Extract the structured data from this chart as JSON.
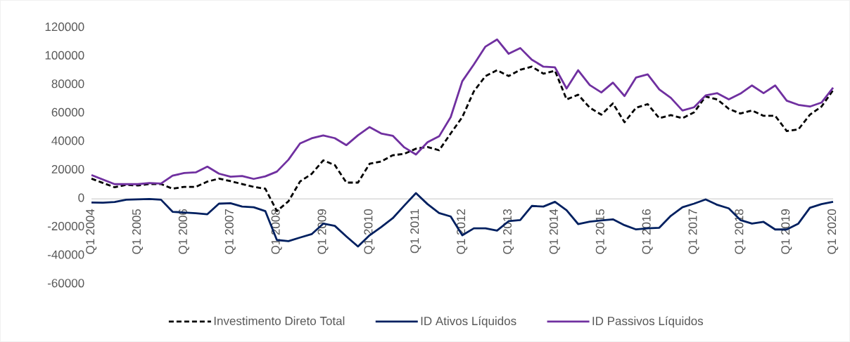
{
  "chart_data": {
    "type": "line",
    "categories": [
      "Q1 2004",
      null,
      null,
      null,
      "Q1 2005",
      null,
      null,
      null,
      "Q1 2006",
      null,
      null,
      null,
      "Q1 2007",
      null,
      null,
      null,
      "Q1 2008",
      null,
      null,
      null,
      "Q1 2009",
      null,
      null,
      null,
      "Q1 2010",
      null,
      null,
      null,
      "Q1 2011",
      null,
      null,
      null,
      "Q1 2012",
      null,
      null,
      null,
      "Q1 2013",
      null,
      null,
      null,
      "Q1 2014",
      null,
      null,
      null,
      "Q1 2015",
      null,
      null,
      null,
      "Q1 2016",
      null,
      null,
      null,
      "Q1 2017",
      null,
      null,
      null,
      "Q1 2018",
      null,
      null,
      null,
      "Q1 2019",
      null,
      null,
      null,
      "Q1 2020"
    ],
    "series": [
      {
        "name": "Investimento Direto Total",
        "color": "#000000",
        "line_style": "dashed",
        "values": [
          14300,
          11200,
          8200,
          9900,
          9500,
          10500,
          10500,
          7200,
          8500,
          8500,
          12200,
          14300,
          12500,
          10500,
          8500,
          7200,
          -8500,
          -1600,
          12300,
          17600,
          27100,
          23800,
          11500,
          11500,
          24700,
          26300,
          30700,
          31700,
          35300,
          36500,
          34200,
          46000,
          57500,
          75600,
          86300,
          90400,
          86300,
          90700,
          92900,
          88000,
          90100,
          69900,
          73200,
          64100,
          59200,
          67100,
          53900,
          64100,
          66600,
          56700,
          58900,
          56700,
          60800,
          72000,
          69900,
          63300,
          60000,
          62100,
          58400,
          58400,
          47700,
          48800,
          59200,
          64900,
          76400
        ]
      },
      {
        "name": "ID Ativos Líquidos",
        "color": "#002060",
        "line_style": "solid",
        "values": [
          -2500,
          -2600,
          -2100,
          -500,
          -300,
          0,
          -500,
          -9000,
          -9500,
          -10000,
          -10700,
          -3300,
          -3000,
          -5300,
          -5800,
          -8500,
          -28800,
          -29600,
          -27100,
          -24700,
          -17300,
          -18900,
          -26300,
          -33400,
          -25500,
          -19700,
          -13500,
          -4600,
          4100,
          -3600,
          -9900,
          -12300,
          -25500,
          -20600,
          -20600,
          -22200,
          -15600,
          -14800,
          -4900,
          -5300,
          -2000,
          -7900,
          -17600,
          -15900,
          -15100,
          -14300,
          -18400,
          -21400,
          -20600,
          -20200,
          -11800,
          -5800,
          -3300,
          -300,
          -4100,
          -6600,
          -14800,
          -17300,
          -16100,
          -21400,
          -21400,
          -17300,
          -6200,
          -3600,
          -2000
        ]
      },
      {
        "name": "ID Passivos Líquidos",
        "color": "#7030a0",
        "line_style": "solid",
        "values": [
          16800,
          13600,
          10400,
          10400,
          10400,
          11200,
          10800,
          16400,
          18200,
          18700,
          22700,
          17800,
          15600,
          16100,
          14100,
          15900,
          19200,
          27600,
          39000,
          42600,
          44600,
          42700,
          37800,
          44700,
          50500,
          46000,
          44400,
          36200,
          31200,
          39900,
          44000,
          57500,
          82700,
          94500,
          107000,
          112000,
          102000,
          106000,
          97800,
          92900,
          92400,
          77600,
          90400,
          80000,
          74800,
          81700,
          72300,
          85300,
          87500,
          76900,
          71000,
          62100,
          64400,
          72700,
          74300,
          69900,
          74000,
          79700,
          74300,
          79700,
          69000,
          66100,
          64900,
          67700,
          78100
        ]
      }
    ],
    "ylim": [
      -60000,
      120000
    ],
    "yticks": [
      -60000,
      -40000,
      -20000,
      0,
      20000,
      40000,
      60000,
      80000,
      100000,
      120000
    ],
    "legend": "bottom"
  }
}
